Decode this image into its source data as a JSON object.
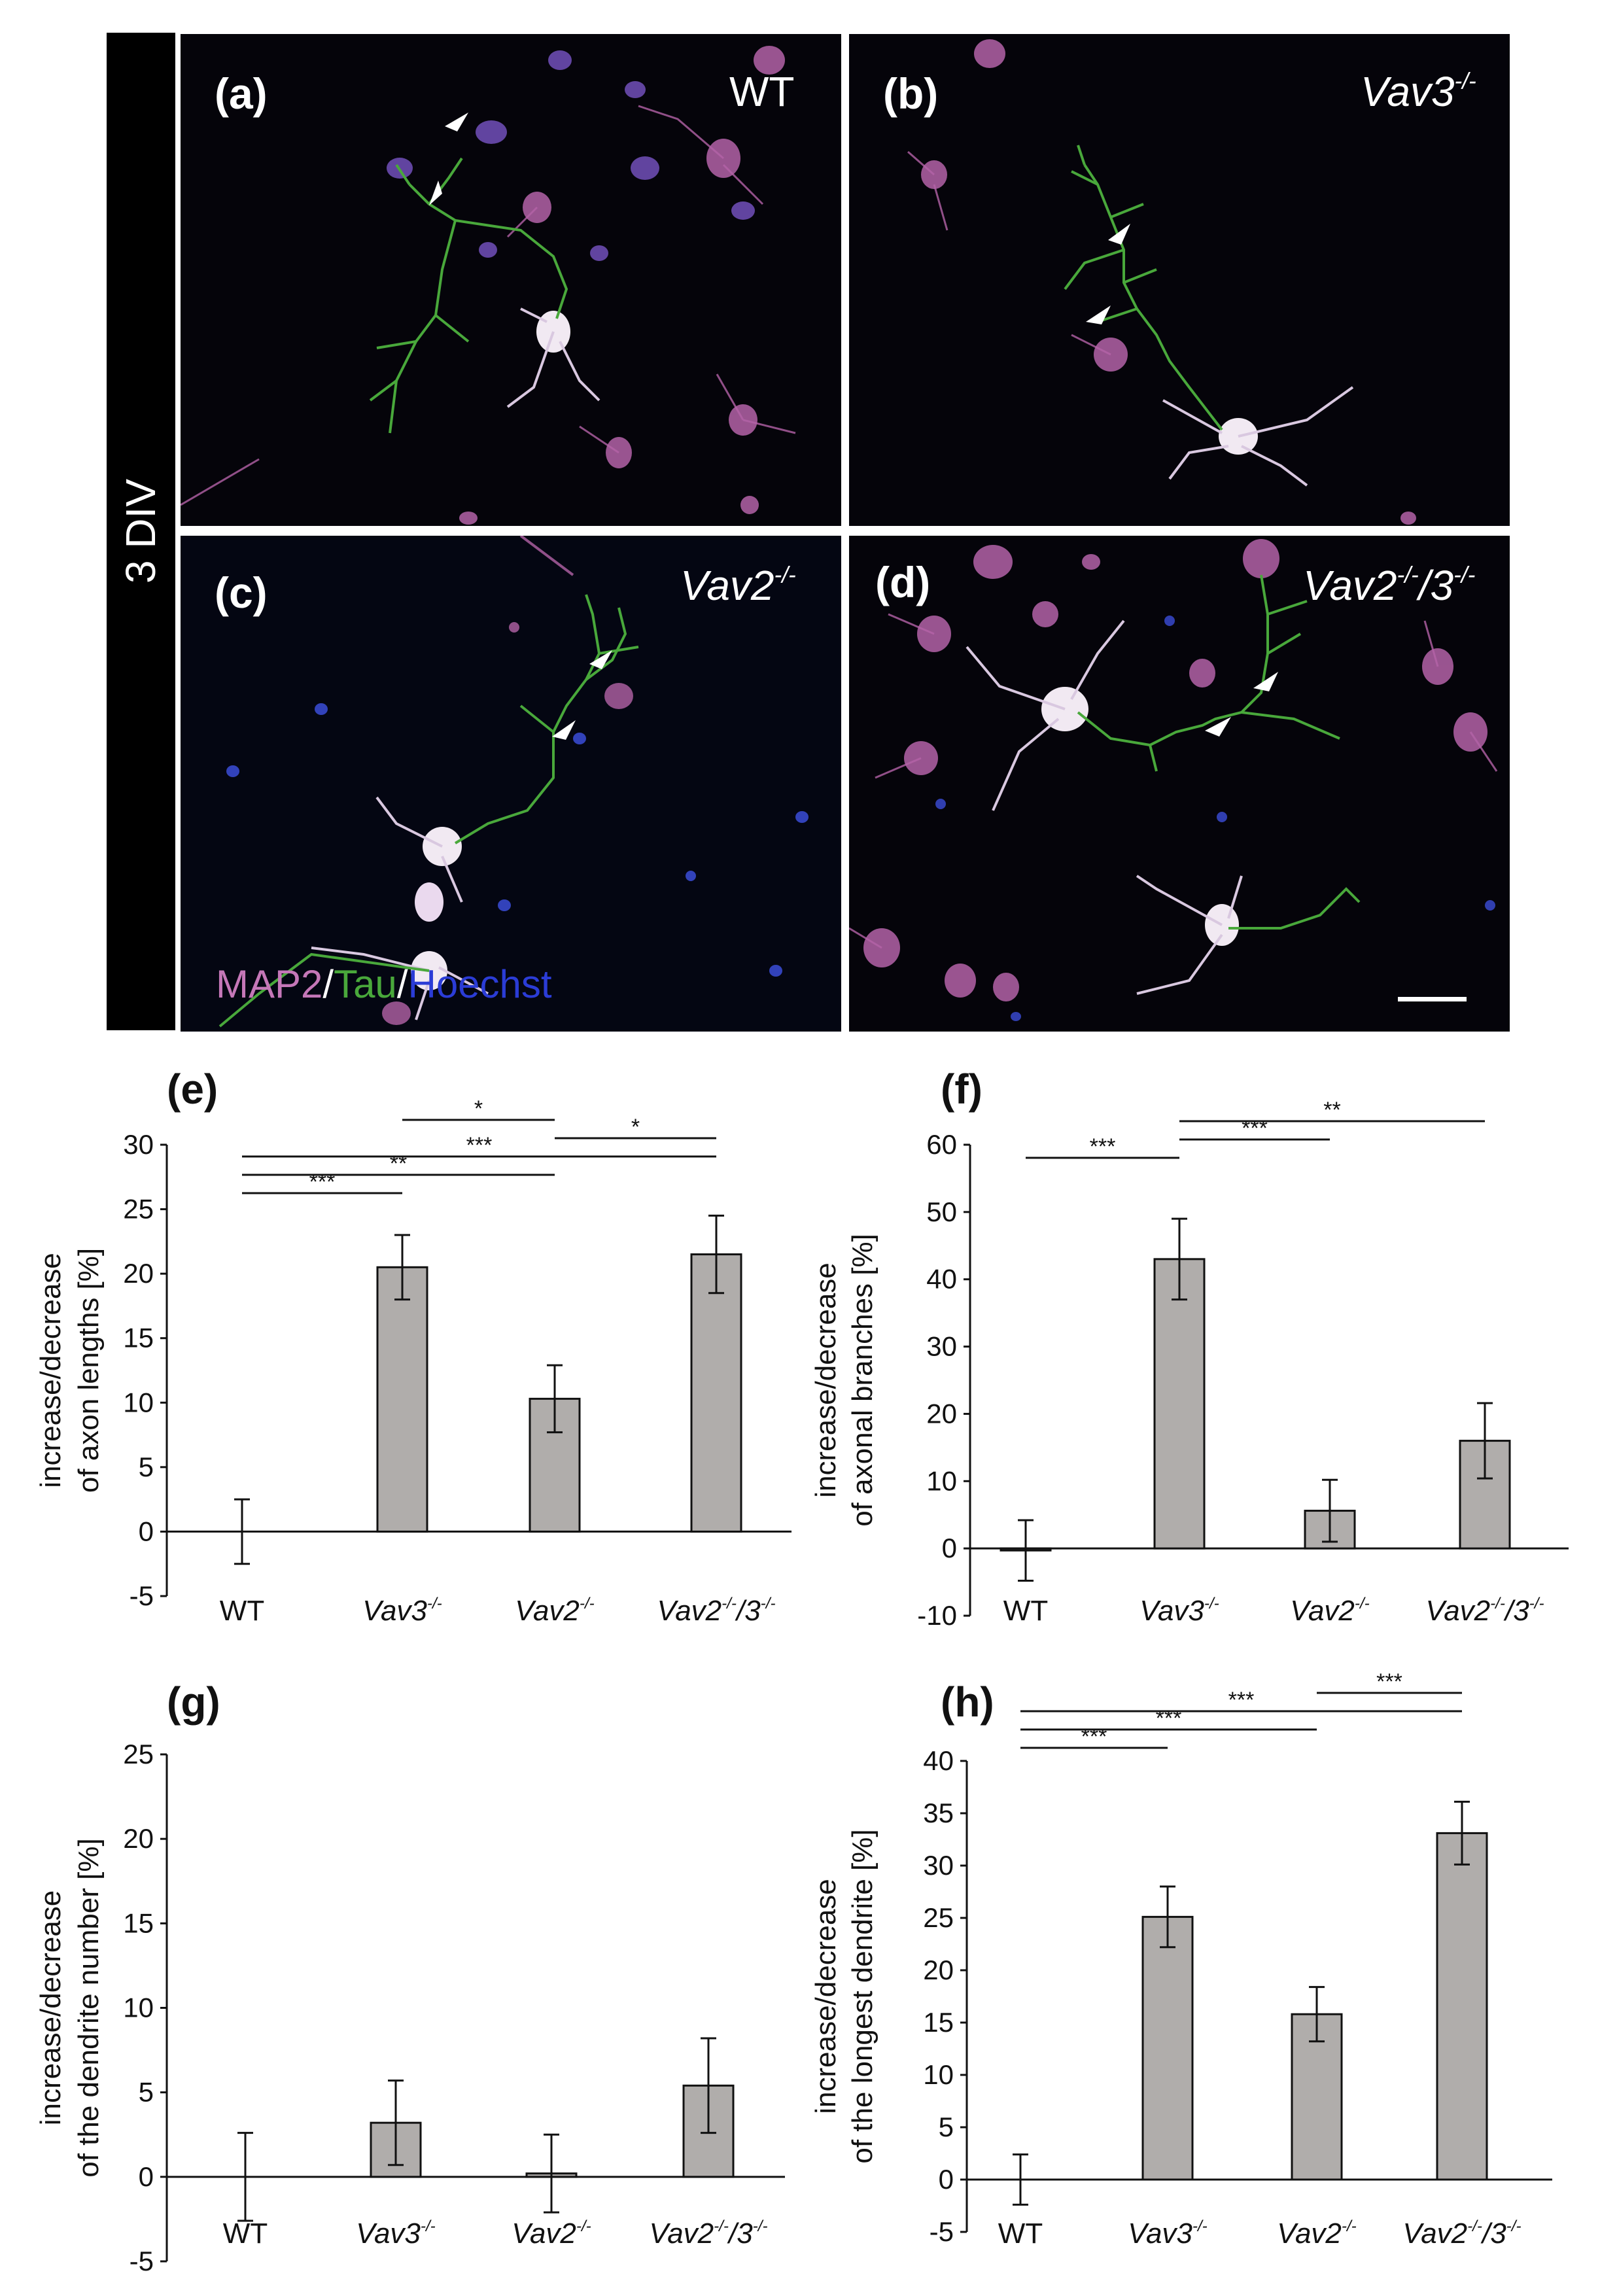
{
  "micrographs": {
    "condition": "3 DIV",
    "panels": [
      {
        "letter": "(a)",
        "genotype": "WT"
      },
      {
        "letter": "(b)",
        "genotype": "Vav3",
        "sup": "-/-"
      },
      {
        "letter": "(c)",
        "genotype": "Vav2",
        "sup": "-/-"
      },
      {
        "letter": "(d)",
        "genotype": "Vav2",
        "sup1": "-/-",
        "genotype2": "/3",
        "sup2": "-/-"
      }
    ],
    "legend": {
      "map2": "MAP2",
      "sep": "/",
      "tau": "Tau",
      "hoechst": "Hoechst"
    },
    "colors": {
      "map2": "#c577b8",
      "tau": "#49a83b",
      "hoechst": "#2b3cd6"
    }
  },
  "chart_data": [
    {
      "panel": "(e)",
      "type": "bar",
      "categories": [
        {
          "base": "WT",
          "sup": ""
        },
        {
          "base": "Vav3",
          "sup": "-/-"
        },
        {
          "base": "Vav2",
          "sup": "-/-"
        },
        {
          "base": "Vav2",
          "sup": "-/-",
          "base2": "/3",
          "sup2": "-/-"
        }
      ],
      "values": [
        0,
        20.5,
        10.3,
        21.5
      ],
      "errors": [
        2.5,
        2.5,
        2.6,
        3.0
      ],
      "ylabel": [
        "increase/decrease",
        "of axon lengths [%]"
      ],
      "ylim": [
        -5,
        30
      ],
      "yticks": [
        -5,
        0,
        5,
        10,
        15,
        20,
        25,
        30
      ],
      "significance": [
        {
          "from": 1,
          "to": 2,
          "label": "*"
        },
        {
          "from": 2,
          "to": 3,
          "label": "*"
        },
        {
          "from": 0,
          "to": 3,
          "label": "***"
        },
        {
          "from": 0,
          "to": 2,
          "label": "**"
        },
        {
          "from": 0,
          "to": 1,
          "label": "***"
        }
      ],
      "bar_color": "#b0adab"
    },
    {
      "panel": "(f)",
      "type": "bar",
      "categories": [
        {
          "base": "WT",
          "sup": ""
        },
        {
          "base": "Vav3",
          "sup": "-/-"
        },
        {
          "base": "Vav2",
          "sup": "-/-"
        },
        {
          "base": "Vav2",
          "sup": "-/-",
          "base2": "/3",
          "sup2": "-/-"
        }
      ],
      "values": [
        -0.3,
        43,
        5.6,
        16
      ],
      "errors": [
        4.5,
        6.0,
        4.6,
        5.6
      ],
      "ylabel": [
        "increase/decrease",
        "of axonal branches [%]"
      ],
      "ylim": [
        -10,
        60
      ],
      "yticks": [
        -10,
        0,
        10,
        20,
        30,
        40,
        50,
        60
      ],
      "significance": [
        {
          "from": 1,
          "to": 3,
          "label": "**"
        },
        {
          "from": 1,
          "to": 2,
          "label": "***"
        },
        {
          "from": 0,
          "to": 1,
          "label": "***"
        }
      ],
      "bar_color": "#b0adab"
    },
    {
      "panel": "(g)",
      "type": "bar",
      "categories": [
        {
          "base": "WT",
          "sup": ""
        },
        {
          "base": "Vav3",
          "sup": "-/-"
        },
        {
          "base": "Vav2",
          "sup": "-/-"
        },
        {
          "base": "Vav2",
          "sup": "-/-",
          "base2": "/3",
          "sup2": "-/-"
        }
      ],
      "values": [
        0,
        3.2,
        0.2,
        5.4
      ],
      "errors": [
        2.6,
        2.5,
        2.3,
        2.8
      ],
      "ylabel": [
        "increase/decrease",
        "of the dendrite number [%]"
      ],
      "ylim": [
        -5,
        25
      ],
      "yticks": [
        -5,
        0,
        5,
        10,
        15,
        20,
        25
      ],
      "significance": [],
      "bar_color": "#b0adab"
    },
    {
      "panel": "(h)",
      "type": "bar",
      "categories": [
        {
          "base": "WT",
          "sup": ""
        },
        {
          "base": "Vav3",
          "sup": "-/-"
        },
        {
          "base": "Vav2",
          "sup": "-/-"
        },
        {
          "base": "Vav2",
          "sup": "-/-",
          "base2": "/3",
          "sup2": "-/-"
        }
      ],
      "values": [
        0,
        25.1,
        15.8,
        33.1
      ],
      "errors": [
        2.4,
        2.9,
        2.6,
        3.0
      ],
      "ylabel": [
        "increase/decrease",
        "of the longest dendrite [%]"
      ],
      "ylim": [
        -5,
        40
      ],
      "yticks": [
        -5,
        0,
        5,
        10,
        15,
        20,
        25,
        30,
        35,
        40
      ],
      "significance": [
        {
          "from": 2,
          "to": 3,
          "label": "***"
        },
        {
          "from": 0,
          "to": 3,
          "label": "***"
        },
        {
          "from": 0,
          "to": 2,
          "label": "***"
        },
        {
          "from": 0,
          "to": 1,
          "label": "***"
        }
      ],
      "bar_color": "#b0adab"
    }
  ]
}
